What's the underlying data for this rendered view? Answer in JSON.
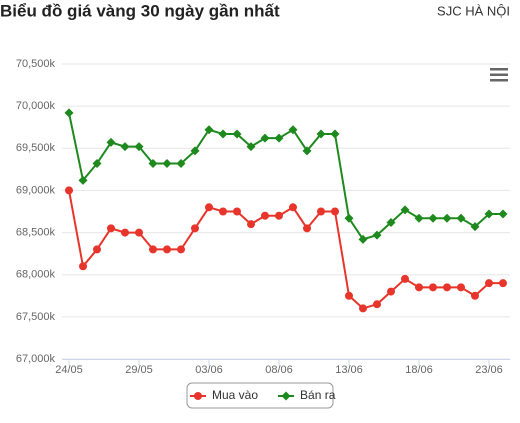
{
  "header": {
    "title": "Biểu đồ giá vàng 30 ngày gần nhất",
    "location": "SJC HÀ NỘI"
  },
  "chart_data": {
    "type": "line",
    "categories": [
      "24/05",
      null,
      null,
      null,
      null,
      "29/05",
      null,
      null,
      null,
      null,
      "03/06",
      null,
      null,
      null,
      null,
      "08/06",
      null,
      null,
      null,
      null,
      "13/06",
      null,
      null,
      null,
      null,
      "18/06",
      null,
      null,
      null,
      null,
      "23/06",
      null
    ],
    "series": [
      {
        "name": "Mua vào",
        "color": "#e8352b",
        "marker": "circle",
        "values": [
          69000,
          68100,
          68300,
          68550,
          68500,
          68500,
          68300,
          68300,
          68300,
          68550,
          68800,
          68750,
          68750,
          68600,
          68700,
          68700,
          68800,
          68550,
          68750,
          68750,
          67750,
          67600,
          67650,
          67800,
          67950,
          67850,
          67850,
          67850,
          67850,
          67750,
          67900,
          67900
        ]
      },
      {
        "name": "Bán ra",
        "color": "#1e8a1e",
        "marker": "diamond",
        "values": [
          69920,
          69120,
          69320,
          69570,
          69520,
          69520,
          69320,
          69320,
          69320,
          69470,
          69720,
          69670,
          69670,
          69520,
          69620,
          69620,
          69720,
          69470,
          69670,
          69670,
          68670,
          68420,
          68470,
          68620,
          68770,
          68670,
          68670,
          68670,
          68670,
          68570,
          68720,
          68720
        ]
      }
    ],
    "ylim": [
      67000,
      70500
    ],
    "yticks": [
      {
        "value": 67000,
        "label": "67,000k"
      },
      {
        "value": 67500,
        "label": "67,500k"
      },
      {
        "value": 68000,
        "label": "68,000k"
      },
      {
        "value": 68500,
        "label": "68,500k"
      },
      {
        "value": 69000,
        "label": "69,000k"
      },
      {
        "value": 69500,
        "label": "69,500k"
      },
      {
        "value": 70000,
        "label": "70,000k"
      },
      {
        "value": 70500,
        "label": "70,500k"
      }
    ],
    "grid": true
  }
}
